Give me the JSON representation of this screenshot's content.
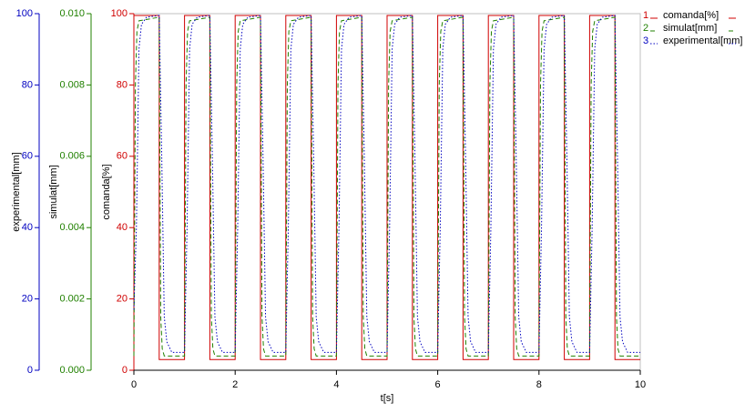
{
  "chart_data": {
    "type": "line",
    "xlabel": "t[s]",
    "ylabel": "comanda[%]",
    "y2label": "simulat[mm]",
    "y3label": "experimental[mm]",
    "xlim": [
      0,
      10
    ],
    "xticks": [
      0,
      2,
      4,
      6,
      8,
      10
    ],
    "ylim": [
      0,
      100
    ],
    "yticks": [
      0,
      20,
      40,
      60,
      80,
      100
    ],
    "y2lim": [
      0,
      0.01
    ],
    "y2ticks": [
      {
        "value": 0,
        "label": "0.000"
      },
      {
        "value": 0.002,
        "label": "0.002"
      },
      {
        "value": 0.004,
        "label": "0.004"
      },
      {
        "value": 0.006,
        "label": "0.006"
      },
      {
        "value": 0.008,
        "label": "0.008"
      },
      {
        "value": 0.01,
        "label": "0.010"
      }
    ],
    "y3lim": [
      0,
      100
    ],
    "y3ticks": [
      0,
      20,
      40,
      60,
      80,
      100
    ],
    "series": [
      {
        "index_label": "1",
        "name": "comanda[%]",
        "color": "#d00000",
        "style": "solid",
        "axis": "y",
        "x": [
          0,
          0,
          0.5,
          0.5,
          1,
          1,
          1.5,
          1.5,
          2,
          2,
          2.5,
          2.5,
          3,
          3,
          3.5,
          3.5,
          4,
          4,
          4.5,
          4.5,
          5,
          5,
          5.5,
          5.5,
          6,
          6,
          6.5,
          6.5,
          7,
          7,
          7.5,
          7.5,
          8,
          8,
          8.5,
          8.5,
          9,
          9,
          9.5,
          9.5,
          10
        ],
        "values": [
          3,
          99.5,
          99.5,
          3,
          3,
          99.5,
          99.5,
          3,
          3,
          99.5,
          99.5,
          3,
          3,
          99.5,
          99.5,
          3,
          3,
          99.5,
          99.5,
          3,
          3,
          99.5,
          99.5,
          3,
          3,
          99.5,
          99.5,
          3,
          3,
          99.5,
          99.5,
          3,
          3,
          99.5,
          99.5,
          3,
          3,
          99.5,
          99.5,
          3,
          3
        ]
      },
      {
        "index_label": "2",
        "name": "simulat[mm]",
        "color": "#208000",
        "style": "dashed",
        "axis": "y2",
        "x": [
          0,
          0.03,
          0.06,
          0.1,
          0.5,
          0.53,
          0.56,
          0.6,
          1,
          1.03,
          1.06,
          1.1,
          1.5,
          1.53,
          1.56,
          1.6,
          2,
          2.03,
          2.06,
          2.1,
          2.5,
          2.53,
          2.56,
          2.6,
          3,
          3.03,
          3.06,
          3.1,
          3.5,
          3.53,
          3.56,
          3.6,
          4,
          4.03,
          4.06,
          4.1,
          4.5,
          4.53,
          4.56,
          4.6,
          5,
          5.03,
          5.06,
          5.1,
          5.5,
          5.53,
          5.56,
          5.6,
          6,
          6.03,
          6.06,
          6.1,
          6.5,
          6.53,
          6.56,
          6.6,
          7,
          7.03,
          7.06,
          7.1,
          7.5,
          7.53,
          7.56,
          7.6,
          8,
          8.03,
          8.06,
          8.1,
          8.5,
          8.53,
          8.56,
          8.6,
          9,
          9.03,
          9.06,
          9.1,
          9.5,
          9.53,
          9.56,
          9.6,
          10
        ],
        "values": [
          0.0004,
          0.008,
          0.0095,
          0.0098,
          0.0099,
          0.0015,
          0.0006,
          0.0004,
          0.0004,
          0.008,
          0.0095,
          0.0098,
          0.0099,
          0.0015,
          0.0006,
          0.0004,
          0.0004,
          0.008,
          0.0095,
          0.0098,
          0.0099,
          0.0015,
          0.0006,
          0.0004,
          0.0004,
          0.008,
          0.0095,
          0.0098,
          0.0099,
          0.0015,
          0.0006,
          0.0004,
          0.0004,
          0.008,
          0.0095,
          0.0098,
          0.0099,
          0.0015,
          0.0006,
          0.0004,
          0.0004,
          0.008,
          0.0095,
          0.0098,
          0.0099,
          0.0015,
          0.0006,
          0.0004,
          0.0004,
          0.008,
          0.0095,
          0.0098,
          0.0099,
          0.0015,
          0.0006,
          0.0004,
          0.0004,
          0.008,
          0.0095,
          0.0098,
          0.0099,
          0.0015,
          0.0006,
          0.0004,
          0.0004,
          0.008,
          0.0095,
          0.0098,
          0.0099,
          0.0015,
          0.0006,
          0.0004,
          0.0004,
          0.008,
          0.0095,
          0.0098,
          0.0099,
          0.0015,
          0.0006,
          0.0004,
          0.0004
        ]
      },
      {
        "index_label": "3",
        "name": "experimental[mm]",
        "color": "#0000c0",
        "style": "dotted",
        "axis": "y3",
        "x": [
          0,
          0.05,
          0.1,
          0.15,
          0.25,
          0.5,
          0.55,
          0.6,
          0.65,
          0.75,
          1,
          1.05,
          1.1,
          1.15,
          1.25,
          1.5,
          1.55,
          1.6,
          1.65,
          1.75,
          2,
          2.05,
          2.1,
          2.15,
          2.25,
          2.5,
          2.55,
          2.6,
          2.65,
          2.75,
          3,
          3.05,
          3.1,
          3.15,
          3.25,
          3.5,
          3.55,
          3.6,
          3.65,
          3.75,
          4,
          4.05,
          4.1,
          4.15,
          4.25,
          4.5,
          4.55,
          4.6,
          4.65,
          4.75,
          5,
          5.05,
          5.1,
          5.15,
          5.25,
          5.5,
          5.55,
          5.6,
          5.65,
          5.75,
          6,
          6.05,
          6.1,
          6.15,
          6.25,
          6.5,
          6.55,
          6.6,
          6.65,
          6.75,
          7,
          7.05,
          7.1,
          7.15,
          7.25,
          7.5,
          7.55,
          7.6,
          7.65,
          7.75,
          8,
          8.05,
          8.1,
          8.15,
          8.25,
          8.5,
          8.55,
          8.6,
          8.65,
          8.75,
          9,
          9.05,
          9.1,
          9.15,
          9.25,
          9.5,
          9.55,
          9.6,
          9.65,
          9.75,
          10
        ],
        "values": [
          17,
          40,
          90,
          97,
          99,
          99.5,
          60,
          15,
          8,
          5,
          5,
          40,
          90,
          97,
          99,
          99.5,
          60,
          15,
          8,
          5,
          5,
          40,
          90,
          97,
          99,
          99.5,
          60,
          15,
          8,
          5,
          5,
          40,
          90,
          97,
          99,
          99.5,
          60,
          15,
          8,
          5,
          5,
          40,
          90,
          97,
          99,
          99.5,
          60,
          15,
          8,
          5,
          5,
          40,
          90,
          97,
          99,
          99.5,
          60,
          15,
          8,
          5,
          5,
          40,
          90,
          97,
          99,
          99.5,
          60,
          15,
          8,
          5,
          5,
          40,
          90,
          97,
          99,
          99.5,
          60,
          15,
          8,
          5,
          5,
          40,
          90,
          97,
          99,
          99.5,
          60,
          15,
          8,
          5,
          5,
          40,
          90,
          97,
          99,
          99.5,
          60,
          15,
          8,
          5,
          5
        ]
      }
    ]
  }
}
